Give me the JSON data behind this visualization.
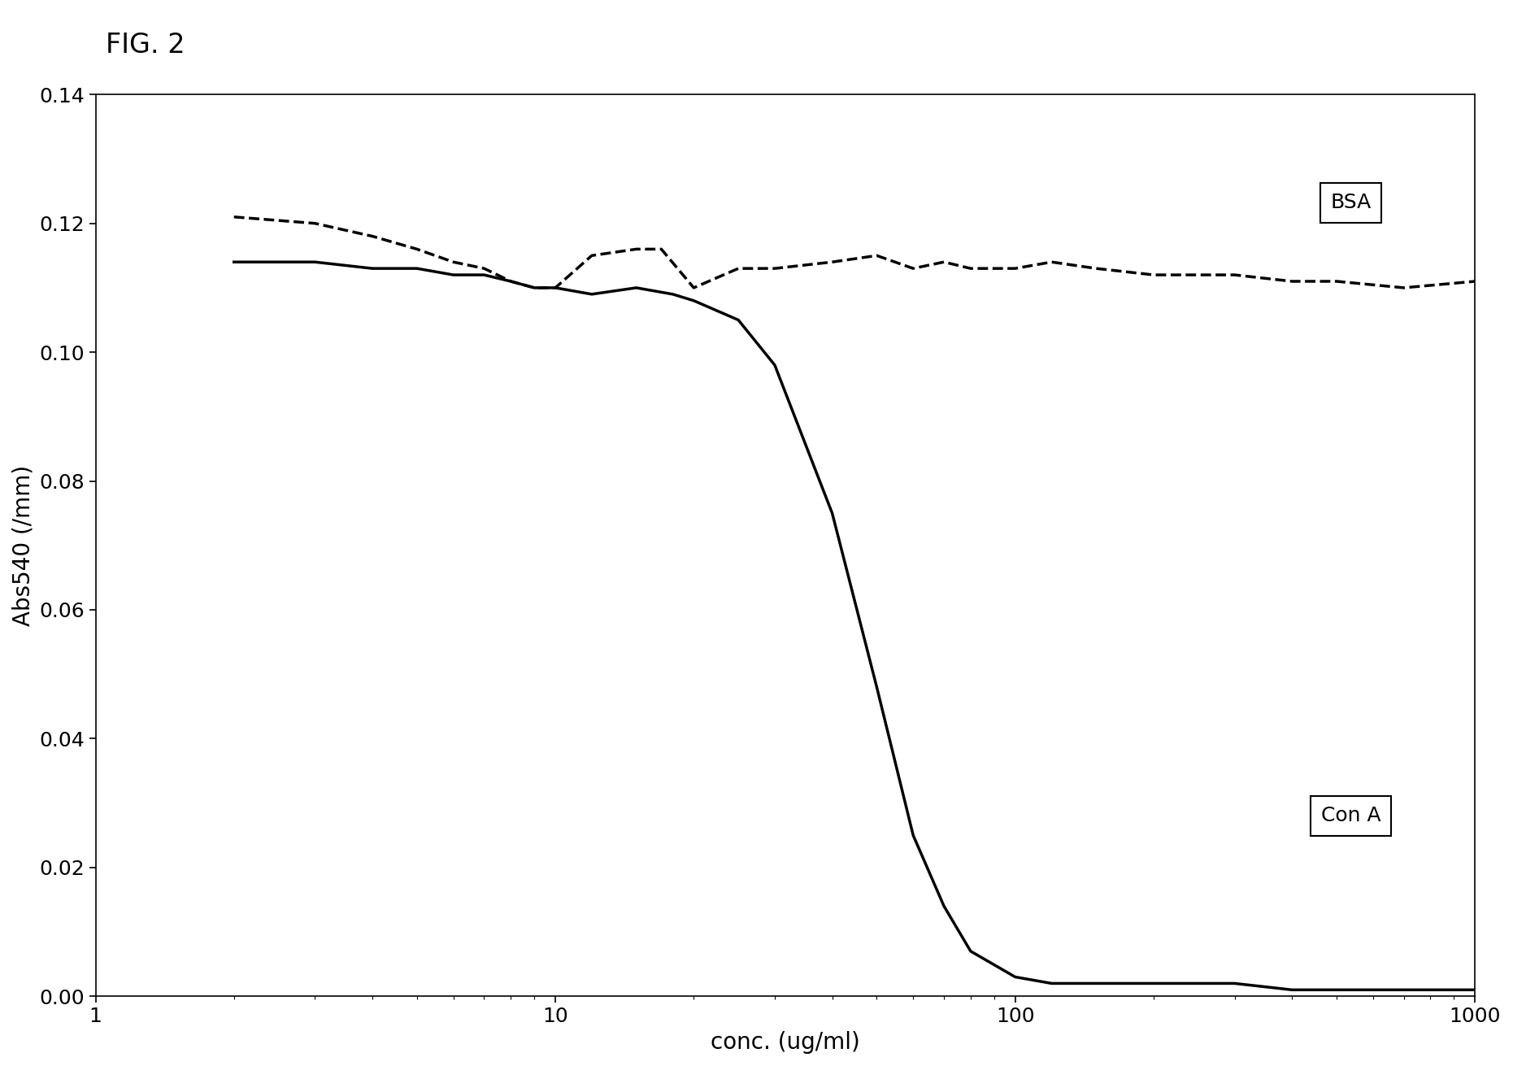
{
  "title": "FIG. 2",
  "xlabel": "conc. (ug/ml)",
  "ylabel": "Abs540 (/mm)",
  "xlim": [
    1,
    1000
  ],
  "ylim": [
    0.0,
    0.14
  ],
  "yticks": [
    0.0,
    0.02,
    0.04,
    0.06,
    0.08,
    0.1,
    0.12,
    0.14
  ],
  "background_color": "#ffffff",
  "bsa_label": "BSA",
  "cona_label": "Con A",
  "bsa_x": [
    2,
    3,
    4,
    5,
    6,
    7,
    8,
    9,
    10,
    12,
    15,
    17,
    20,
    25,
    30,
    40,
    50,
    60,
    70,
    80,
    100,
    120,
    150,
    200,
    300,
    400,
    500,
    700,
    1000
  ],
  "bsa_y": [
    0.121,
    0.12,
    0.118,
    0.116,
    0.114,
    0.113,
    0.111,
    0.11,
    0.11,
    0.115,
    0.116,
    0.116,
    0.11,
    0.113,
    0.113,
    0.114,
    0.115,
    0.113,
    0.114,
    0.113,
    0.113,
    0.114,
    0.113,
    0.112,
    0.112,
    0.111,
    0.111,
    0.11,
    0.111
  ],
  "cona_x": [
    2,
    3,
    4,
    5,
    6,
    7,
    8,
    9,
    10,
    12,
    15,
    18,
    20,
    25,
    30,
    40,
    50,
    60,
    70,
    80,
    100,
    120,
    150,
    200,
    250,
    300,
    400,
    500,
    700,
    1000
  ],
  "cona_y": [
    0.114,
    0.114,
    0.113,
    0.113,
    0.112,
    0.112,
    0.111,
    0.11,
    0.11,
    0.109,
    0.11,
    0.109,
    0.108,
    0.105,
    0.098,
    0.075,
    0.048,
    0.025,
    0.014,
    0.007,
    0.003,
    0.002,
    0.002,
    0.002,
    0.002,
    0.002,
    0.001,
    0.001,
    0.001,
    0.001
  ],
  "fig_width": 18.61,
  "fig_height": 13.11,
  "dpi": 100
}
